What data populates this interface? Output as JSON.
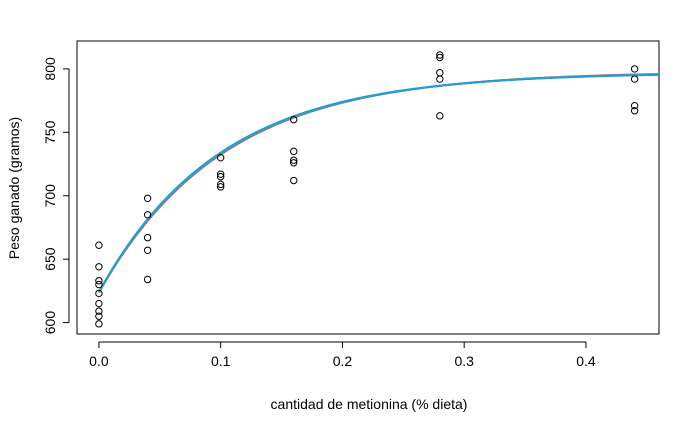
{
  "chart_data": {
    "type": "scatter",
    "xlabel": "cantidad de metionina (% dieta)",
    "ylabel": "Peso ganado (gramos)",
    "xlim": [
      -0.018,
      0.46
    ],
    "ylim": [
      591,
      822
    ],
    "xticks": [
      0.0,
      0.1,
      0.2,
      0.3,
      0.4
    ],
    "xtick_labels": [
      "0.0",
      "0.1",
      "0.2",
      "0.3",
      "0.4"
    ],
    "yticks": [
      600,
      650,
      700,
      750,
      800
    ],
    "ytick_labels": [
      "600",
      "650",
      "700",
      "750",
      "800"
    ],
    "grid": false,
    "points": [
      {
        "x": 0.0,
        "y": 661
      },
      {
        "x": 0.0,
        "y": 644
      },
      {
        "x": 0.0,
        "y": 633
      },
      {
        "x": 0.0,
        "y": 630
      },
      {
        "x": 0.0,
        "y": 623
      },
      {
        "x": 0.0,
        "y": 615
      },
      {
        "x": 0.0,
        "y": 609
      },
      {
        "x": 0.0,
        "y": 605
      },
      {
        "x": 0.0,
        "y": 599
      },
      {
        "x": 0.04,
        "y": 698
      },
      {
        "x": 0.04,
        "y": 685
      },
      {
        "x": 0.04,
        "y": 667
      },
      {
        "x": 0.04,
        "y": 657
      },
      {
        "x": 0.04,
        "y": 634
      },
      {
        "x": 0.1,
        "y": 730
      },
      {
        "x": 0.1,
        "y": 717
      },
      {
        "x": 0.1,
        "y": 715
      },
      {
        "x": 0.1,
        "y": 709
      },
      {
        "x": 0.1,
        "y": 707
      },
      {
        "x": 0.16,
        "y": 760
      },
      {
        "x": 0.16,
        "y": 735
      },
      {
        "x": 0.16,
        "y": 728
      },
      {
        "x": 0.16,
        "y": 726
      },
      {
        "x": 0.16,
        "y": 712
      },
      {
        "x": 0.28,
        "y": 811
      },
      {
        "x": 0.28,
        "y": 809
      },
      {
        "x": 0.28,
        "y": 797
      },
      {
        "x": 0.28,
        "y": 792
      },
      {
        "x": 0.28,
        "y": 763
      },
      {
        "x": 0.44,
        "y": 800
      },
      {
        "x": 0.44,
        "y": 792
      },
      {
        "x": 0.44,
        "y": 771
      },
      {
        "x": 0.44,
        "y": 767
      }
    ],
    "curves": [
      {
        "color": "#d9534f",
        "model": {
          "a": 797.9,
          "b": 174.3,
          "c": 9.8
        }
      },
      {
        "color": "#7b6fc9",
        "model": {
          "a": 797.5,
          "b": 173.6,
          "c": 9.9
        }
      },
      {
        "color": "#3cb371",
        "model": {
          "a": 797.2,
          "b": 173.3,
          "c": 10.0
        }
      },
      {
        "color": "#1e9fd8",
        "model": {
          "a": 797.0,
          "b": 172.9,
          "c": 10.1
        }
      }
    ]
  }
}
